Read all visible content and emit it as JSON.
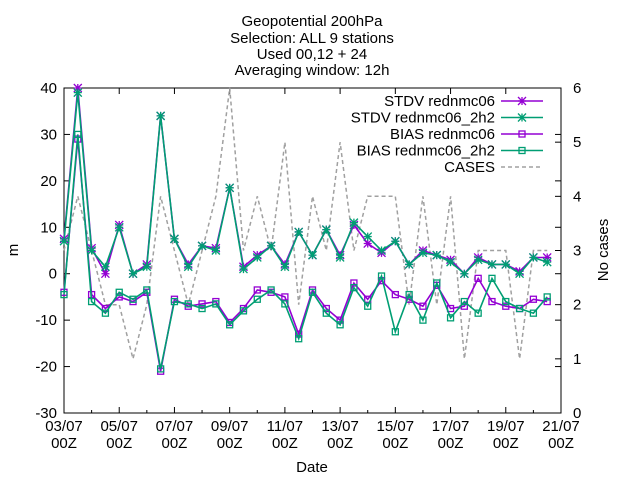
{
  "chart_data": {
    "type": "line",
    "title_lines": [
      "Geopotential 200hPa",
      "Selection: ALL      9 stations",
      "Used 00,12 + 24",
      "Averaging window: 12h"
    ],
    "xlabel": "Date",
    "ylabel": "m",
    "y2label": "No cases",
    "ylim": [
      -30,
      40
    ],
    "y2lim": [
      0,
      6
    ],
    "yticks": [
      "-30",
      "-20",
      "-10",
      "0",
      "10",
      "20",
      "30",
      "40"
    ],
    "y2ticks": [
      "0",
      "1",
      "2",
      "3",
      "4",
      "5",
      "6"
    ],
    "xticks": [
      {
        "date": "03/07",
        "hour": "00Z"
      },
      {
        "date": "05/07",
        "hour": "00Z"
      },
      {
        "date": "07/07",
        "hour": "00Z"
      },
      {
        "date": "09/07",
        "hour": "00Z"
      },
      {
        "date": "11/07",
        "hour": "00Z"
      },
      {
        "date": "13/07",
        "hour": "00Z"
      },
      {
        "date": "15/07",
        "hour": "00Z"
      },
      {
        "date": "17/07",
        "hour": "00Z"
      },
      {
        "date": "19/07",
        "hour": "00Z"
      },
      {
        "date": "21/07",
        "hour": "00Z"
      }
    ],
    "x_days_from_03_07": [
      0,
      0.5,
      1,
      1.5,
      2,
      2.5,
      3,
      3.5,
      4,
      4.5,
      5,
      5.5,
      6,
      6.5,
      7,
      7.5,
      8,
      8.5,
      9,
      9.5,
      10,
      10.5,
      11,
      11.5,
      12,
      12.5,
      13,
      13.5,
      14,
      14.5,
      15,
      15.5,
      16,
      16.5,
      17,
      17.5
    ],
    "series": [
      {
        "name": "STDV rednmc06",
        "axis": "y",
        "color": "#9400d3",
        "marker": "asterisk",
        "values": [
          7.5,
          40,
          5.5,
          0,
          10.5,
          0,
          2,
          34,
          7.5,
          2,
          6,
          5.5,
          18.5,
          1.5,
          4,
          6,
          2,
          9,
          4,
          9.5,
          4,
          10.5,
          6.5,
          4.5,
          7,
          2,
          5,
          4,
          3,
          0,
          3.5,
          2,
          2,
          0.5,
          3.5,
          3.5
        ]
      },
      {
        "name": "STDV rednmc06_2h2",
        "axis": "y",
        "color": "#009e73",
        "marker": "asterisk",
        "values": [
          7,
          39,
          5,
          1.5,
          10,
          0,
          1.5,
          34,
          7.5,
          1.5,
          6,
          5,
          18.5,
          1,
          3.5,
          6,
          1.5,
          9,
          4,
          9.5,
          3.5,
          11,
          8,
          5,
          7,
          2,
          4.5,
          4,
          2.5,
          0,
          3,
          2,
          2,
          0,
          3.5,
          2.5
        ]
      },
      {
        "name": "BIAS rednmc06",
        "axis": "y",
        "color": "#9400d3",
        "marker": "square",
        "values": [
          -4,
          29,
          -4.5,
          -7.5,
          -5,
          -6,
          -4,
          -21,
          -5.5,
          -7,
          -6.5,
          -6,
          -10.5,
          -7.5,
          -3.5,
          -4,
          -5,
          -13,
          -3.5,
          -7.5,
          -10,
          -2,
          -5.5,
          -1.5,
          -4.5,
          -5.5,
          -7,
          -2.5,
          -7.5,
          -7,
          -1,
          -6,
          -7,
          -7.5,
          -5.5,
          -6
        ]
      },
      {
        "name": "BIAS rednmc06_2h2",
        "axis": "y",
        "color": "#009e73",
        "marker": "square",
        "values": [
          -4.5,
          30,
          -6,
          -8.5,
          -4,
          -5.5,
          -3.5,
          -20.5,
          -6,
          -6.5,
          -7.5,
          -6.5,
          -11,
          -8,
          -5.5,
          -3.5,
          -6.5,
          -14,
          -4,
          -8.5,
          -11,
          -3,
          -7,
          -0.5,
          -12.5,
          -4.5,
          -10,
          -2,
          -9.5,
          -6,
          -8.5,
          -1,
          -6,
          -7.5,
          -8.5,
          -5
        ]
      },
      {
        "name": "CASES",
        "axis": "y2",
        "color": "#a0a0a0",
        "marker": "none",
        "dashed": true,
        "values": [
          3,
          4,
          3,
          2,
          2,
          1,
          2,
          4,
          3,
          2,
          3,
          4,
          6,
          3,
          4,
          3,
          5,
          2,
          4,
          3,
          5,
          3,
          4,
          4,
          4,
          2,
          4,
          2,
          4,
          1,
          3,
          3,
          3,
          1,
          3,
          3
        ]
      }
    ]
  }
}
